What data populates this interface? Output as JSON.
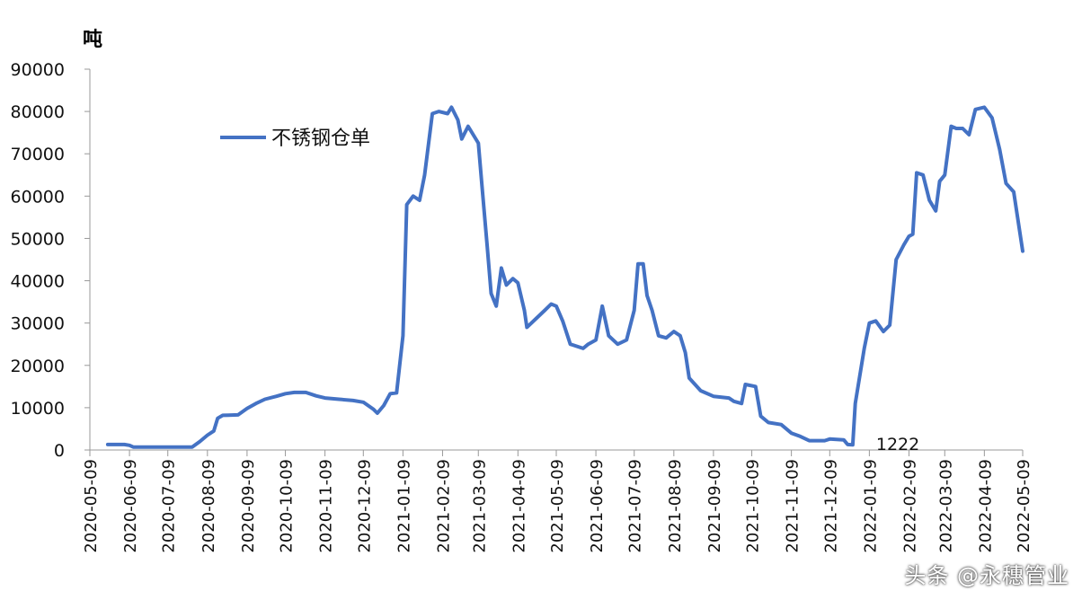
{
  "chart_data": {
    "type": "line",
    "unit_label": "吨",
    "ylim": [
      0,
      90000
    ],
    "yticks": [
      0,
      10000,
      20000,
      30000,
      40000,
      50000,
      60000,
      70000,
      80000,
      90000
    ],
    "xticks": [
      "2020-05-09",
      "2020-06-09",
      "2020-07-09",
      "2020-08-09",
      "2020-09-09",
      "2020-10-09",
      "2020-11-09",
      "2020-12-09",
      "2021-01-09",
      "2021-02-09",
      "2021-03-09",
      "2021-04-09",
      "2021-05-09",
      "2021-06-09",
      "2021-07-09",
      "2021-08-09",
      "2021-09-09",
      "2021-10-09",
      "2021-11-09",
      "2021-12-09",
      "2022-01-09",
      "2022-02-09",
      "2022-03-09",
      "2022-04-09",
      "2022-05-09"
    ],
    "legend_position": "top-left",
    "grid": false,
    "series": [
      {
        "name": "不锈钢仓单",
        "color": "#4472C4",
        "points": [
          [
            "2020-05-23",
            1300
          ],
          [
            "2020-06-05",
            1300
          ],
          [
            "2020-06-09",
            1100
          ],
          [
            "2020-06-12",
            700
          ],
          [
            "2020-07-09",
            700
          ],
          [
            "2020-07-28",
            700
          ],
          [
            "2020-08-03",
            2000
          ],
          [
            "2020-08-09",
            3500
          ],
          [
            "2020-08-14",
            4500
          ],
          [
            "2020-08-17",
            7500
          ],
          [
            "2020-08-21",
            8200
          ],
          [
            "2020-09-02",
            8300
          ],
          [
            "2020-09-09",
            9800
          ],
          [
            "2020-09-16",
            11000
          ],
          [
            "2020-09-23",
            12000
          ],
          [
            "2020-10-02",
            12700
          ],
          [
            "2020-10-09",
            13300
          ],
          [
            "2020-10-16",
            13600
          ],
          [
            "2020-10-25",
            13600
          ],
          [
            "2020-11-02",
            12800
          ],
          [
            "2020-11-09",
            12300
          ],
          [
            "2020-11-20",
            12000
          ],
          [
            "2020-12-01",
            11700
          ],
          [
            "2020-12-09",
            11300
          ],
          [
            "2020-12-17",
            9600
          ],
          [
            "2020-12-20",
            8700
          ],
          [
            "2020-12-25",
            10500
          ],
          [
            "2020-12-30",
            13300
          ],
          [
            "2021-01-04",
            13500
          ],
          [
            "2021-01-09",
            27000
          ],
          [
            "2021-01-12",
            58000
          ],
          [
            "2021-01-17",
            60000
          ],
          [
            "2021-01-22",
            59000
          ],
          [
            "2021-01-26",
            65000
          ],
          [
            "2021-02-01",
            79500
          ],
          [
            "2021-02-06",
            80000
          ],
          [
            "2021-02-13",
            79500
          ],
          [
            "2021-02-16",
            81000
          ],
          [
            "2021-02-21",
            78000
          ],
          [
            "2021-02-24",
            73500
          ],
          [
            "2021-03-01",
            76500
          ],
          [
            "2021-03-05",
            74500
          ],
          [
            "2021-03-09",
            72500
          ],
          [
            "2021-03-12",
            62000
          ],
          [
            "2021-03-16",
            48000
          ],
          [
            "2021-03-19",
            37000
          ],
          [
            "2021-03-23",
            34000
          ],
          [
            "2021-03-27",
            43000
          ],
          [
            "2021-03-31",
            39000
          ],
          [
            "2021-04-05",
            40500
          ],
          [
            "2021-04-09",
            39500
          ],
          [
            "2021-04-14",
            33000
          ],
          [
            "2021-04-16",
            29000
          ],
          [
            "2021-04-23",
            31000
          ],
          [
            "2021-04-30",
            33000
          ],
          [
            "2021-05-05",
            34500
          ],
          [
            "2021-05-09",
            34000
          ],
          [
            "2021-05-14",
            30500
          ],
          [
            "2021-05-20",
            25000
          ],
          [
            "2021-05-30",
            24000
          ],
          [
            "2021-06-03",
            25000
          ],
          [
            "2021-06-09",
            26000
          ],
          [
            "2021-06-14",
            34000
          ],
          [
            "2021-06-19",
            27000
          ],
          [
            "2021-06-26",
            25000
          ],
          [
            "2021-07-03",
            26000
          ],
          [
            "2021-07-09",
            33000
          ],
          [
            "2021-07-12",
            44000
          ],
          [
            "2021-07-16",
            44000
          ],
          [
            "2021-07-19",
            36500
          ],
          [
            "2021-07-23",
            33000
          ],
          [
            "2021-07-28",
            27000
          ],
          [
            "2021-08-03",
            26500
          ],
          [
            "2021-08-09",
            28000
          ],
          [
            "2021-08-14",
            27000
          ],
          [
            "2021-08-18",
            23000
          ],
          [
            "2021-08-21",
            17000
          ],
          [
            "2021-08-30",
            14000
          ],
          [
            "2021-09-09",
            12700
          ],
          [
            "2021-09-21",
            12300
          ],
          [
            "2021-09-25",
            11500
          ],
          [
            "2021-10-01",
            11000
          ],
          [
            "2021-10-04",
            15500
          ],
          [
            "2021-10-12",
            15000
          ],
          [
            "2021-10-16",
            8000
          ],
          [
            "2021-10-22",
            6500
          ],
          [
            "2021-11-01",
            6000
          ],
          [
            "2021-11-09",
            4000
          ],
          [
            "2021-11-16",
            3200
          ],
          [
            "2021-11-23",
            2200
          ],
          [
            "2021-12-05",
            2200
          ],
          [
            "2021-12-09",
            2600
          ],
          [
            "2021-12-20",
            2400
          ],
          [
            "2021-12-23",
            1300
          ],
          [
            "2021-12-27",
            1222
          ],
          [
            "2021-12-29",
            11000
          ],
          [
            "2022-01-05",
            24000
          ],
          [
            "2022-01-09",
            30000
          ],
          [
            "2022-01-14",
            30500
          ],
          [
            "2022-01-20",
            28000
          ],
          [
            "2022-01-25",
            29500
          ],
          [
            "2022-01-30",
            45000
          ],
          [
            "2022-02-05",
            48500
          ],
          [
            "2022-02-09",
            50500
          ],
          [
            "2022-02-12",
            51000
          ],
          [
            "2022-02-15",
            65500
          ],
          [
            "2022-02-20",
            65000
          ],
          [
            "2022-02-25",
            59000
          ],
          [
            "2022-03-02",
            56500
          ],
          [
            "2022-03-05",
            63500
          ],
          [
            "2022-03-09",
            65000
          ],
          [
            "2022-03-14",
            76500
          ],
          [
            "2022-03-18",
            76000
          ],
          [
            "2022-03-23",
            76000
          ],
          [
            "2022-03-28",
            74500
          ],
          [
            "2022-04-02",
            80500
          ],
          [
            "2022-04-09",
            81000
          ],
          [
            "2022-04-15",
            78500
          ],
          [
            "2022-04-21",
            71000
          ],
          [
            "2022-04-26",
            63000
          ],
          [
            "2022-05-02",
            61000
          ],
          [
            "2022-05-05",
            55000
          ],
          [
            "2022-05-09",
            47000
          ]
        ]
      }
    ],
    "annotations": [
      {
        "text": "1222",
        "x": "2021-12-27",
        "y": 1222
      }
    ]
  },
  "watermark": "头条 @永穗管业"
}
